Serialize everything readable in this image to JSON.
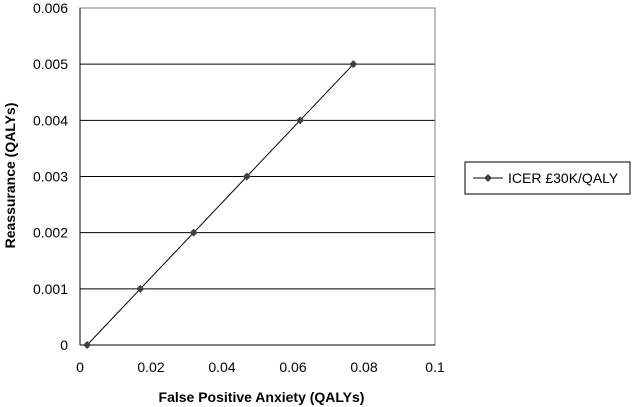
{
  "chart_data": {
    "type": "line",
    "xlabel": "False Positive Anxiety (QALYs)",
    "ylabel": "Reassurance (QALYs)",
    "xlim": [
      0,
      0.1
    ],
    "ylim": [
      0,
      0.006
    ],
    "x_ticks": [
      "0",
      "0.02",
      "0.04",
      "0.06",
      "0.08",
      "0.1"
    ],
    "y_ticks": [
      "0",
      "0.001",
      "0.002",
      "0.003",
      "0.004",
      "0.005",
      "0.006"
    ],
    "grid": "horizontal",
    "legend_position": "right",
    "series": [
      {
        "name": "ICER £30K/QALY",
        "color": "#000000",
        "marker": "diamond",
        "x": [
          0.002,
          0.017,
          0.032,
          0.047,
          0.062,
          0.077
        ],
        "y": [
          0,
          0.001,
          0.002,
          0.003,
          0.004,
          0.005
        ]
      }
    ]
  }
}
